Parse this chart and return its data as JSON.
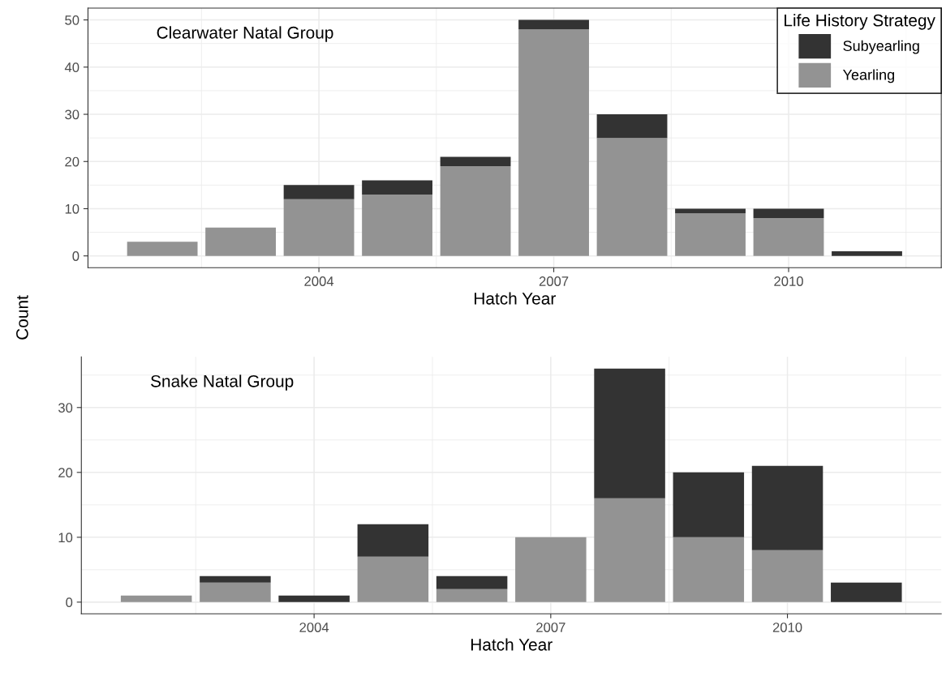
{
  "chart_data": [
    {
      "type": "bar",
      "stacked": true,
      "x": [
        2002,
        2003,
        2004,
        2005,
        2006,
        2007,
        2008,
        2009,
        2010,
        2011
      ],
      "xlabel": "Hatch Year",
      "ylabel": "Count",
      "legend_title": "Life History Strategy",
      "legend": "top right",
      "grid": true,
      "xlim": [
        2001.05,
        2011.95
      ],
      "xticks": [
        2004,
        2007,
        2010
      ],
      "ylim": [
        -2.5,
        52.5
      ],
      "yticks": [
        0,
        10,
        20,
        30,
        40,
        50
      ],
      "annotations": [
        "Clearwater Natal Group"
      ],
      "series": [
        {
          "name": "Yearling",
          "color": "#939393",
          "values": [
            3,
            6,
            12,
            13,
            19,
            48,
            25,
            9,
            8,
            0
          ]
        },
        {
          "name": "Subyearling",
          "color": "#333333",
          "values": [
            0,
            0,
            3,
            3,
            2,
            2,
            5,
            1,
            2,
            1
          ]
        }
      ]
    },
    {
      "type": "bar",
      "stacked": true,
      "x": [
        2002,
        2003,
        2004,
        2005,
        2006,
        2007,
        2008,
        2009,
        2010,
        2011
      ],
      "xlabel": "Hatch Year",
      "grid": true,
      "xlim": [
        2001.05,
        2011.95
      ],
      "xticks": [
        2004,
        2007,
        2010
      ],
      "ylim": [
        -1.8,
        37.8
      ],
      "yticks": [
        0,
        10,
        20,
        30
      ],
      "annotations": [
        "Snake Natal Group"
      ],
      "series": [
        {
          "color": "#939393",
          "values": [
            1,
            3,
            0,
            7,
            2,
            10,
            16,
            10,
            8,
            0
          ]
        },
        {
          "color": "#333333",
          "values": [
            0,
            1,
            1,
            5,
            2,
            0,
            20,
            10,
            13,
            3
          ]
        }
      ]
    }
  ]
}
